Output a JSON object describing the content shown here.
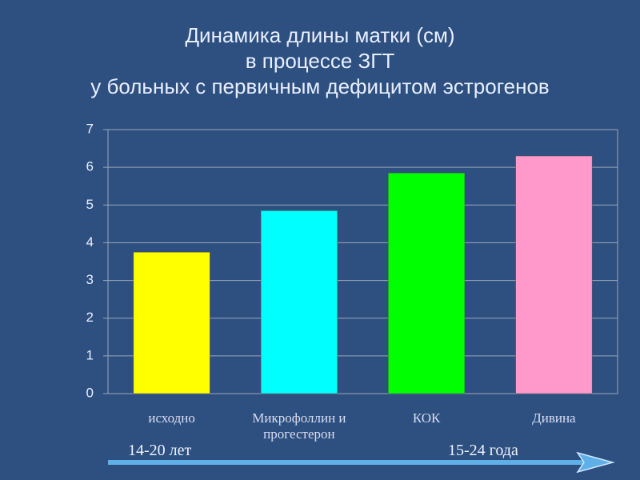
{
  "chart_data": {
    "type": "bar",
    "title": [
      "Динамика длины матки (см)",
      "в процессе  ЗГТ",
      "у больных с первичным дефицитом эстрогенов"
    ],
    "categories": [
      "исходно",
      "Микрофоллин и прогестерон",
      "КОК",
      "Дивина"
    ],
    "values": [
      3.75,
      4.85,
      5.85,
      6.3
    ],
    "colors": [
      "#ffff00",
      "#00ffff",
      "#00ff00",
      "#ff99cc"
    ],
    "ylim": [
      0,
      7
    ],
    "yticks": [
      0,
      1,
      2,
      3,
      4,
      5,
      6,
      7
    ],
    "grid": true,
    "annotations": [
      "14-20 лет",
      "15-24 года"
    ]
  }
}
